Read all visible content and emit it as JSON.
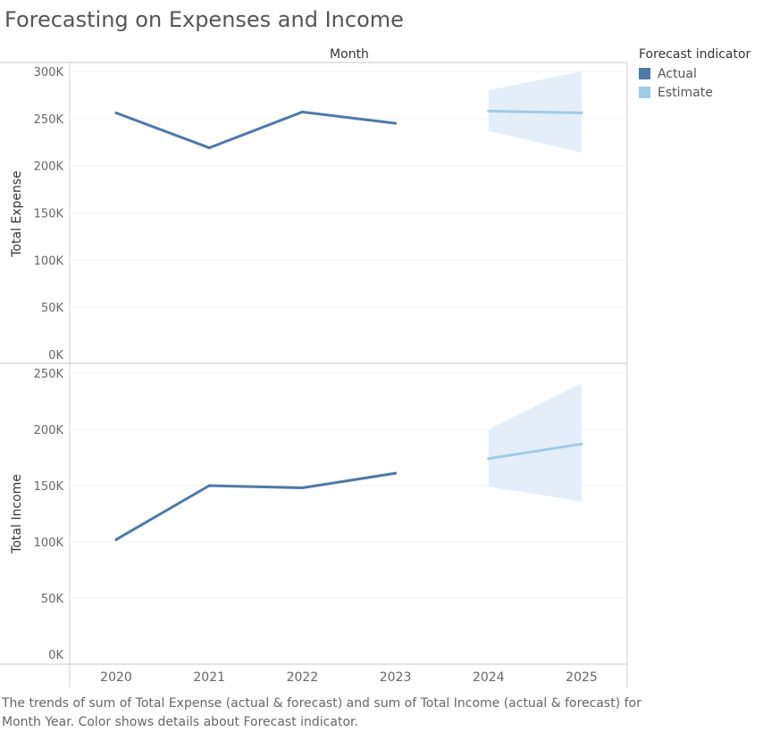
{
  "title": "Forecasting on Expenses and Income",
  "caption": "The trends of sum of Total Expense (actual & forecast)  and sum of Total Income (actual & forecast) for Month Year.  Color shows details about Forecast indicator.",
  "legend": {
    "title": "Forecast indicator",
    "items": [
      {
        "label": "Actual",
        "color": "#4e79a7"
      },
      {
        "label": "Estimate",
        "color": "#a0cbe8"
      }
    ]
  },
  "colors": {
    "actual": "#4e79a7",
    "estimate": "#a0cbe8",
    "band": "#e3eef8"
  },
  "chart_data": {
    "type": "line",
    "xlabel": "Month",
    "categories": [
      "2020",
      "2021",
      "2022",
      "2023",
      "2024",
      "2025"
    ],
    "panels": [
      {
        "ylabel": "Total Expense",
        "ylim": [
          0,
          300000
        ],
        "yticks": [
          0,
          50000,
          100000,
          150000,
          200000,
          250000,
          300000
        ],
        "ytick_labels": [
          "0K",
          "50K",
          "100K",
          "150K",
          "200K",
          "250K",
          "300K"
        ],
        "series": [
          {
            "name": "Actual",
            "x": [
              "2020",
              "2021",
              "2022",
              "2023"
            ],
            "values": [
              256000,
              219000,
              257000,
              245000
            ]
          },
          {
            "name": "Estimate",
            "x": [
              "2024",
              "2025"
            ],
            "values": [
              258000,
              256000
            ],
            "band_upper": [
              280000,
              300000
            ],
            "band_lower": [
              237000,
              214000
            ]
          }
        ]
      },
      {
        "ylabel": "Total Income",
        "ylim": [
          0,
          250000
        ],
        "yticks": [
          0,
          50000,
          100000,
          150000,
          200000,
          250000
        ],
        "ytick_labels": [
          "0K",
          "50K",
          "100K",
          "150K",
          "200K",
          "250K"
        ],
        "series": [
          {
            "name": "Actual",
            "x": [
              "2020",
              "2021",
              "2022",
              "2023"
            ],
            "values": [
              102000,
              150000,
              148000,
              161000
            ]
          },
          {
            "name": "Estimate",
            "x": [
              "2024",
              "2025"
            ],
            "values": [
              174000,
              187000
            ],
            "band_upper": [
              200000,
              241000
            ],
            "band_lower": [
              149000,
              136000
            ]
          }
        ]
      }
    ]
  }
}
